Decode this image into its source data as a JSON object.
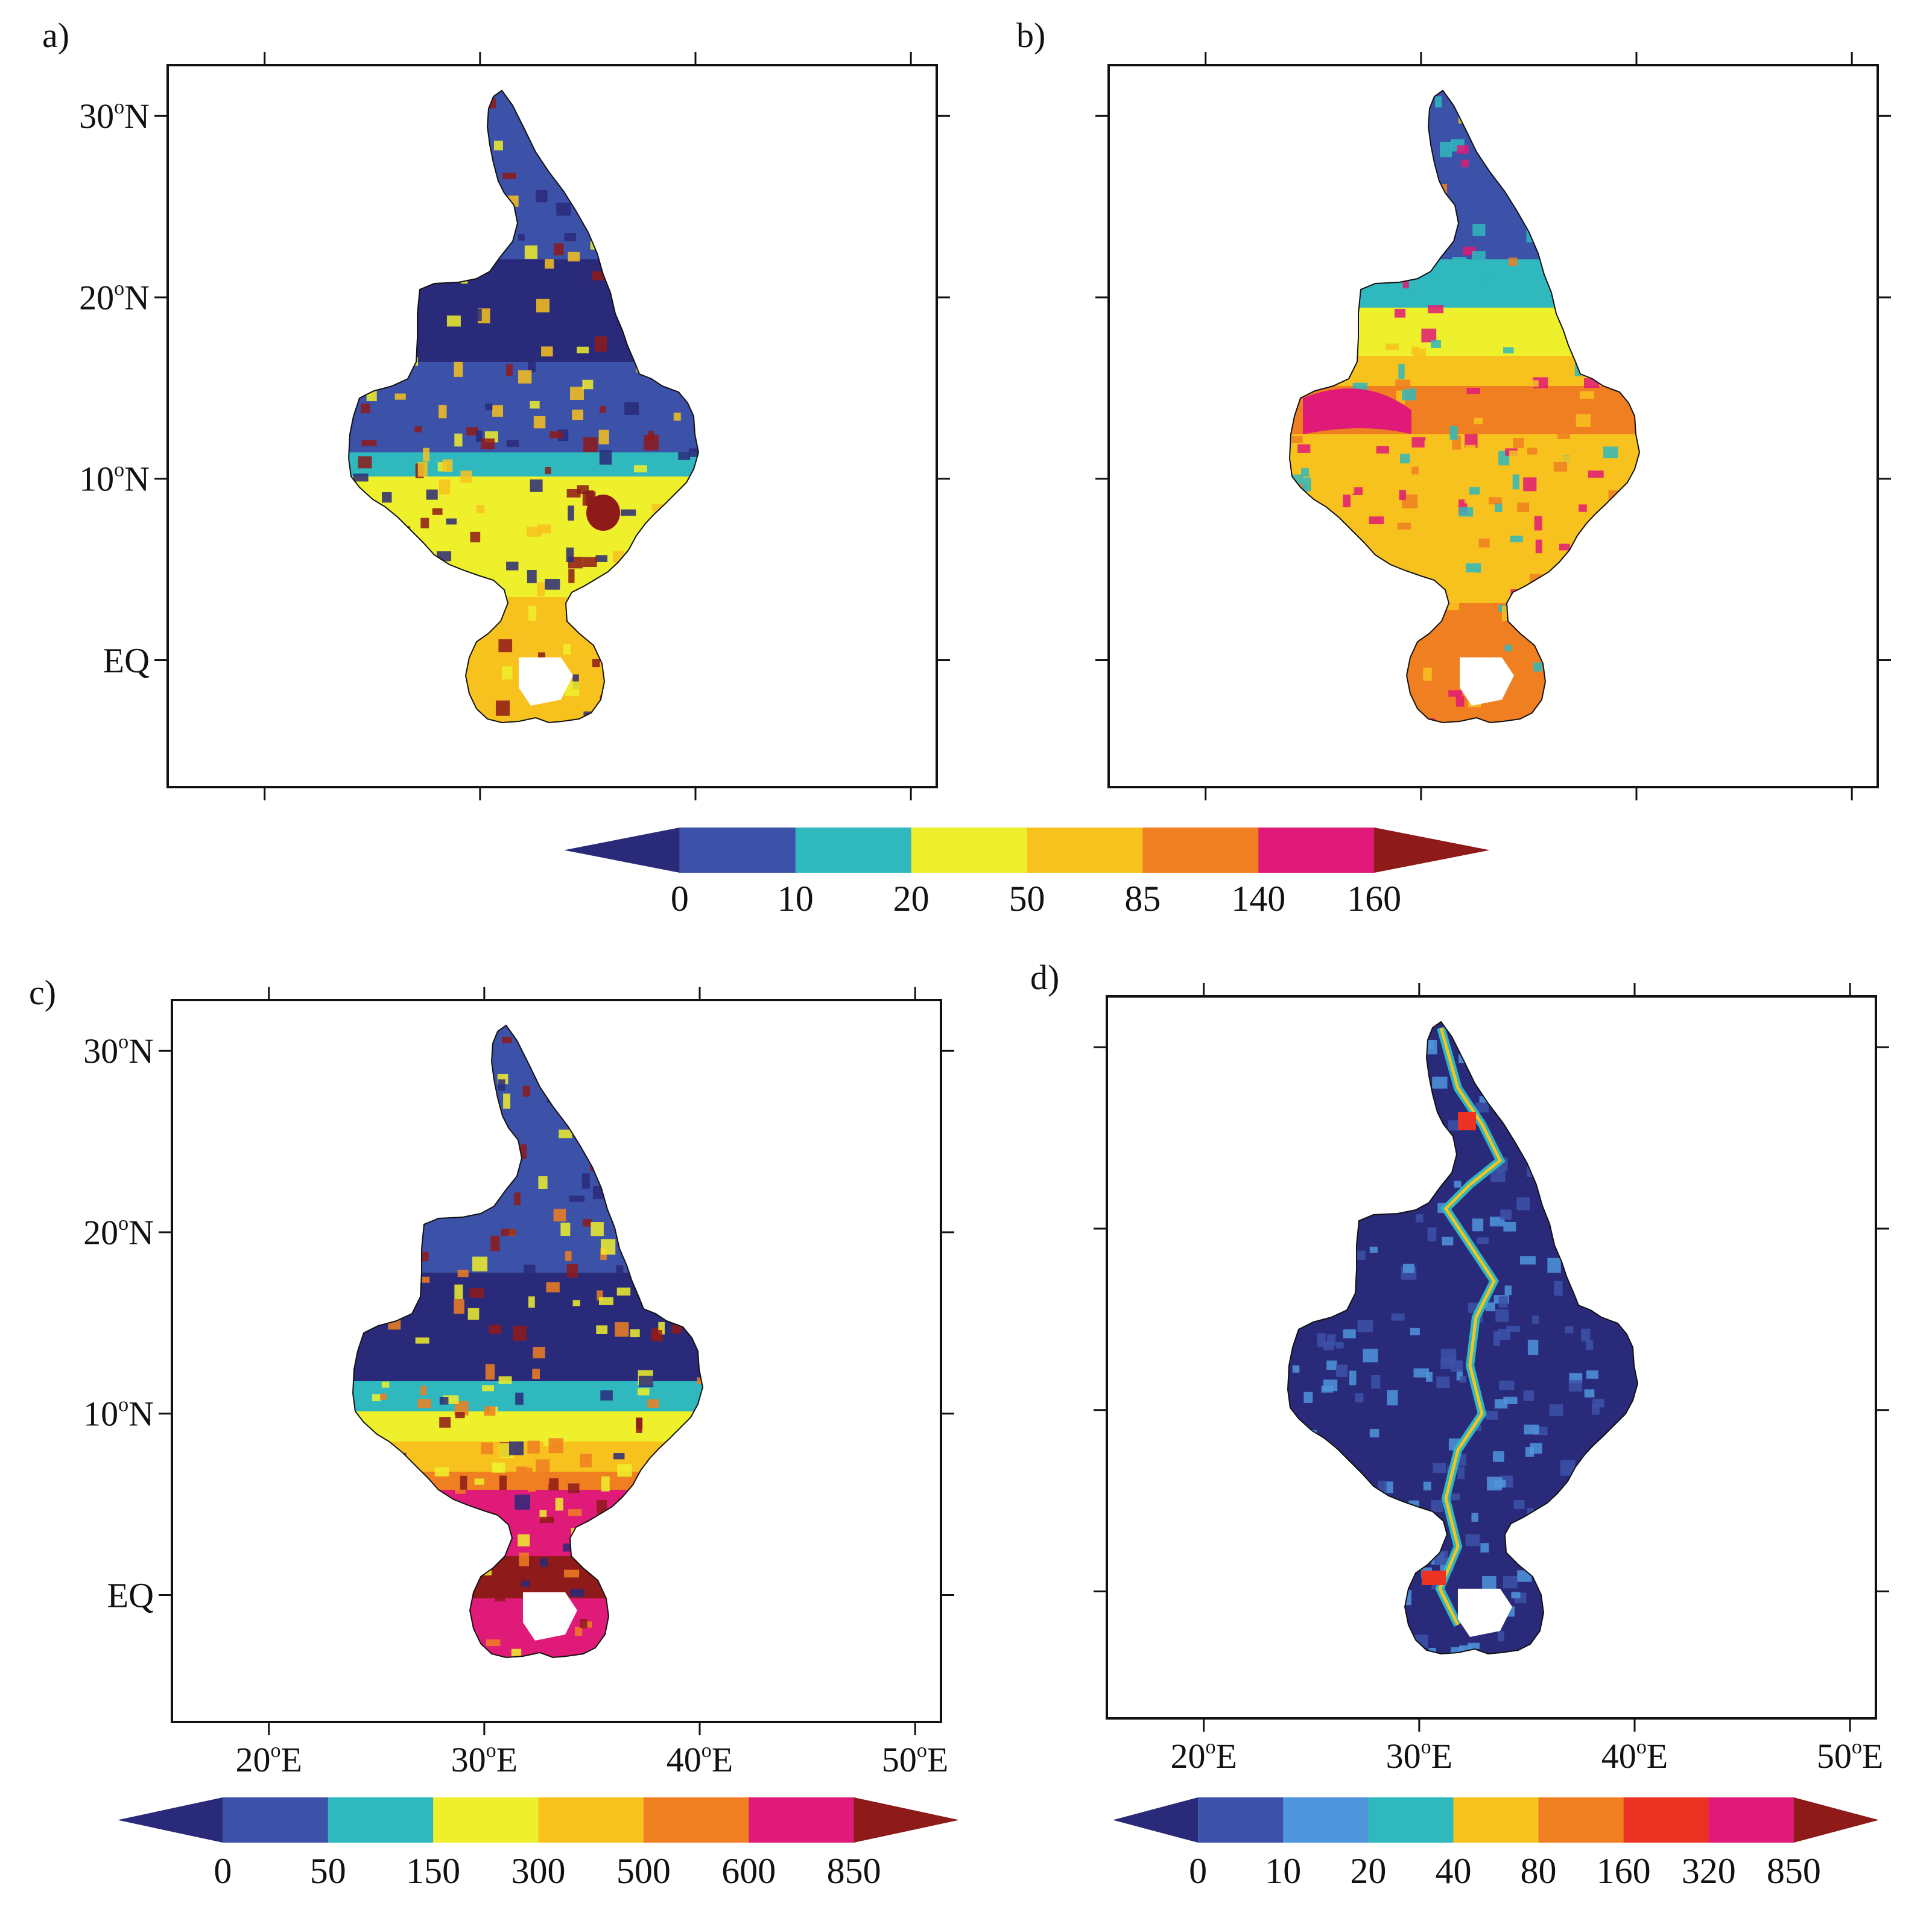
{
  "panels": [
    {
      "id": "a",
      "label": "a)",
      "legend": "ab"
    },
    {
      "id": "b",
      "label": "b)",
      "legend": "ab"
    },
    {
      "id": "c",
      "label": "c)",
      "legend": "c"
    },
    {
      "id": "d",
      "label": "d)",
      "legend": "d"
    }
  ],
  "lat_ticks": [
    {
      "value": 30,
      "label_main": "30",
      "label_sup": "o",
      "label_tail": "N"
    },
    {
      "value": 20,
      "label_main": "20",
      "label_sup": "o",
      "label_tail": "N"
    },
    {
      "value": 10,
      "label_main": "10",
      "label_sup": "o",
      "label_tail": "N"
    },
    {
      "value": 0,
      "label_main": "EQ",
      "label_sup": "",
      "label_tail": ""
    }
  ],
  "lon_ticks": [
    {
      "value": 20,
      "label_main": "20",
      "label_sup": "o",
      "label_tail": "E"
    },
    {
      "value": 30,
      "label_main": "30",
      "label_sup": "o",
      "label_tail": "E"
    },
    {
      "value": 40,
      "label_main": "40",
      "label_sup": "o",
      "label_tail": "E"
    },
    {
      "value": 50,
      "label_main": "50",
      "label_sup": "o",
      "label_tail": "E"
    }
  ],
  "map_extent": {
    "lon": [
      15.5,
      51.2
    ],
    "lat": [
      -7,
      32.8
    ]
  },
  "legends": {
    "ab": {
      "labels": [
        "0",
        "10",
        "20",
        "50",
        "85",
        "140",
        "160"
      ],
      "colors": [
        "#2a2a7a",
        "#3c52a8",
        "#2fb8bd",
        "#eef02c",
        "#f8c21e",
        "#f07f22",
        "#e01a78",
        "#8e1a1a"
      ]
    },
    "c": {
      "labels": [
        "0",
        "50",
        "150",
        "300",
        "500",
        "600",
        "850"
      ],
      "colors": [
        "#2a2a7a",
        "#3c52a8",
        "#2fb8bd",
        "#eef02c",
        "#f8c21e",
        "#f07f22",
        "#e01a78",
        "#8e1a1a"
      ]
    },
    "d": {
      "labels": [
        "0",
        "10",
        "20",
        "40",
        "80",
        "160",
        "320",
        "850"
      ],
      "colors": [
        "#2a2a7a",
        "#3c52a8",
        "#4f95dc",
        "#2fb8bd",
        "#f8c21e",
        "#f07f22",
        "#ec3323",
        "#e01a78",
        "#8e1a1a"
      ]
    }
  }
}
